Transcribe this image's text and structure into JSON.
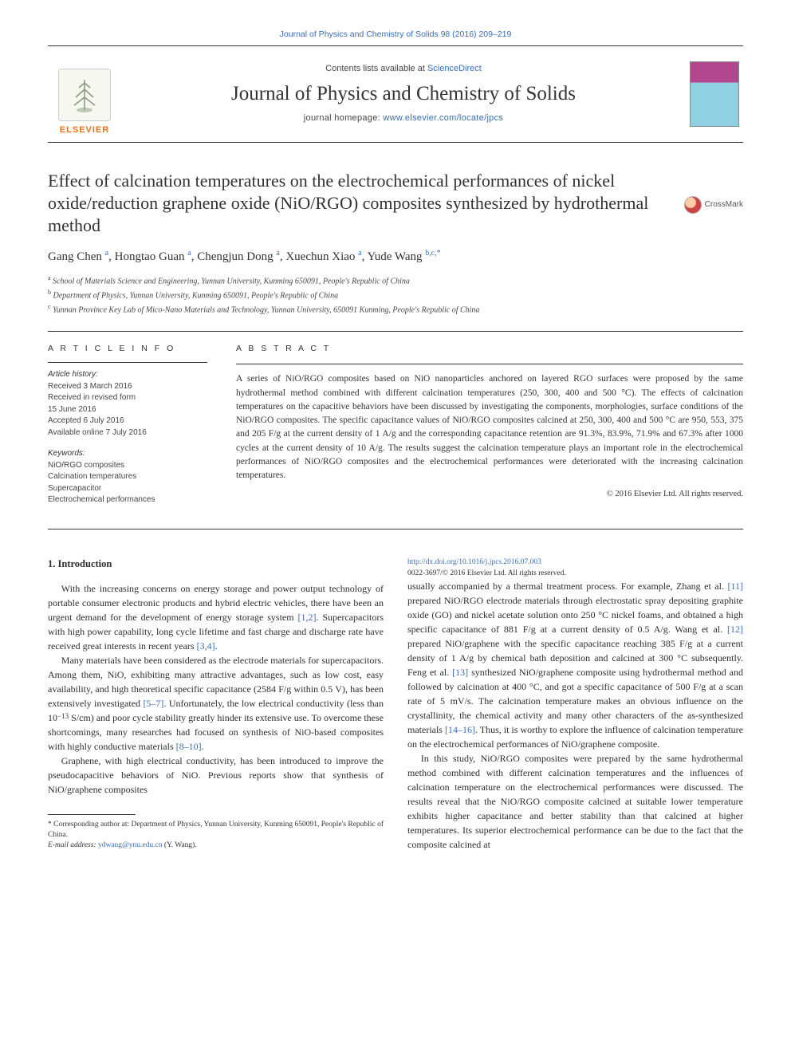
{
  "top_citation": "Journal of Physics and Chemistry of Solids 98 (2016) 209–219",
  "header": {
    "contents_prefix": "Contents lists available at ",
    "contents_link": "ScienceDirect",
    "journal_name": "Journal of Physics and Chemistry of Solids",
    "homepage_prefix": "journal homepage: ",
    "homepage_url": "www.elsevier.com/locate/jpcs",
    "publisher": "ELSEVIER"
  },
  "crossmark_label": "CrossMark",
  "title": "Effect of calcination temperatures on the electrochemical performances of nickel oxide/reduction graphene oxide (NiO/RGO) composites synthesized by hydrothermal method",
  "authors_html": "Gang Chen <span class='sup'>a</span>, Hongtao Guan <span class='sup'>a</span>, Chengjun Dong <span class='sup'>a</span>, Xuechun Xiao <span class='sup'>a</span>, Yude Wang <span class='sup'>b,c,*</span>",
  "affiliations": [
    {
      "sup": "a",
      "text": "School of Materials Science and Engineering, Yunnan University, Kunming 650091, People's Republic of China"
    },
    {
      "sup": "b",
      "text": "Department of Physics, Yunnan University, Kunming 650091, People's Republic of China"
    },
    {
      "sup": "c",
      "text": "Yunnan Province Key Lab of Mico-Nano Materials and Technology, Yunnan University, 650091 Kunming, People's Republic of China"
    }
  ],
  "article_info": {
    "section_label": "A R T I C L E  I N F O",
    "history_label": "Article history:",
    "history": [
      "Received 3 March 2016",
      "Received in revised form",
      "15 June 2016",
      "Accepted 6 July 2016",
      "Available online 7 July 2016"
    ],
    "keywords_label": "Keywords:",
    "keywords": [
      "NiO/RGO composites",
      "Calcination temperatures",
      "Supercapacitor",
      "Electrochemical performances"
    ]
  },
  "abstract": {
    "label": "A B S T R A C T",
    "text": "A series of NiO/RGO composites based on NiO nanoparticles anchored on layered RGO surfaces were proposed by the same hydrothermal method combined with different calcination temperatures (250, 300, 400 and 500 °C). The effects of calcination temperatures on the capacitive behaviors have been discussed by investigating the components, morphologies, surface conditions of the NiO/RGO composites. The specific capacitance values of NiO/RGO composites calcined at 250, 300, 400 and 500 °C are 950, 553, 375 and 205 F/g at the current density of 1 A/g and the corresponding capacitance retention are 91.3%, 83.9%, 71.9% and 67.3% after 1000 cycles at the current density of 10 A/g. The results suggest the calcination temperature plays an important role in the electrochemical performances of NiO/RGO composites and the electrochemical performances were deteriorated with the increasing calcination temperatures.",
    "copyright": "© 2016 Elsevier Ltd. All rights reserved."
  },
  "intro": {
    "heading": "1. Introduction",
    "p1": "With the increasing concerns on energy storage and power output technology of portable consumer electronic products and hybrid electric vehicles, there have been an urgent demand for the development of energy storage system [1,2]. Supercapacitors with high power capability, long cycle lifetime and fast charge and discharge rate have received great interests in recent years [3,4].",
    "p2": "Many materials have been considered as the electrode materials for supercapacitors. Among them, NiO, exhibiting many attractive advantages, such as low cost, easy availability, and high theoretical specific capacitance (2584 F/g within 0.5 V), has been extensively investigated [5–7]. Unfortunately, the low electrical conductivity (less than 10−13 S/cm) and poor cycle stability greatly hinder its extensive use. To overcome these shortcomings, many researches had focused on synthesis of NiO-based composites with highly conductive materials [8–10].",
    "p3": "Graphene, with high electrical conductivity, has been introduced to improve the pseudocapacitive behaviors of NiO. Previous reports show that synthesis of NiO/graphene composites",
    "p4": "usually accompanied by a thermal treatment process. For example, Zhang et al. [11] prepared NiO/RGO electrode materials through electrostatic spray depositing graphite oxide (GO) and nickel acetate solution onto 250 °C nickel foams, and obtained a high specific capacitance of 881 F/g at a current density of 0.5 A/g. Wang et al. [12] prepared NiO/graphene with the specific capacitance reaching 385 F/g at a current density of 1 A/g by chemical bath deposition and calcined at 300 °C subsequently. Feng et al. [13] synthesized NiO/graphene composite using hydrothermal method and followed by calcination at 400 °C, and got a specific capacitance of 500 F/g at a scan rate of 5 mV/s. The calcination temperature makes an obvious influence on the crystallinity, the chemical activity and many other characters of the as-synthesized materials [14–16]. Thus, it is worthy to explore the influence of calcination temperature on the electrochemical performances of NiO/graphene composite.",
    "p5": "In this study, NiO/RGO composites were prepared by the same hydrothermal method combined with different calcination temperatures and the influences of calcination temperature on the electrochemical performances were discussed. The results reveal that the NiO/RGO composite calcined at suitable lower temperature exhibits higher capacitance and better stability than that calcined at higher temperatures. Its superior electrochemical performance can be due to the fact that the composite calcined at"
  },
  "footnotes": {
    "corr": "* Corresponding author at: Department of Physics, Yunnan University, Kunming 650091, People's Republic of China.",
    "email_label": "E-mail address: ",
    "email": "ydwang@ynu.edu.cn",
    "email_suffix": " (Y. Wang)."
  },
  "doi": {
    "url": "http://dx.doi.org/10.1016/j.jpcs.2016.07.003",
    "line2": "0022-3697/© 2016 Elsevier Ltd. All rights reserved."
  },
  "colors": {
    "link": "#3a6eb5",
    "publisher": "#e9711c",
    "text": "#2e2e2e"
  }
}
